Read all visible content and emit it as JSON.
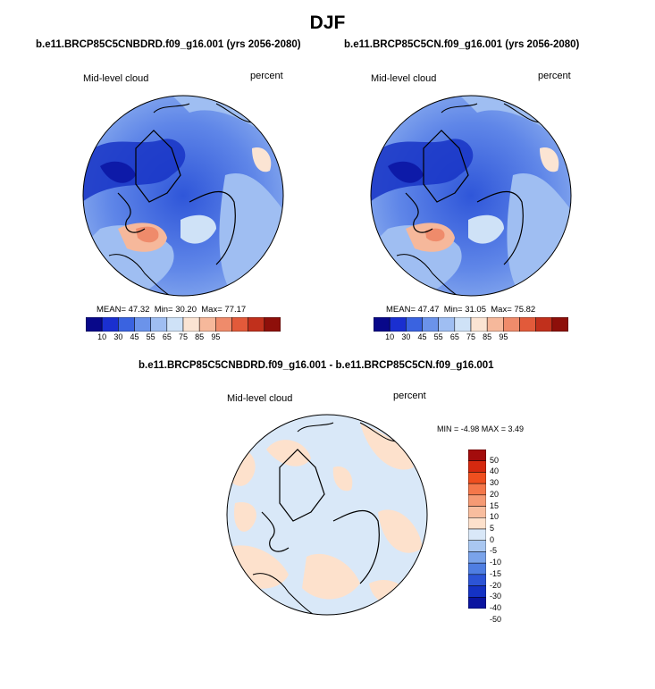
{
  "figure": {
    "season": "DJF"
  },
  "panels": [
    {
      "title": "b.e11.BRCP85C5CNBDRD.f09_g16.001 (yrs 2056-2080)",
      "field": "Mid-level cloud",
      "units": "percent",
      "mean_label": "MEAN=",
      "mean": "47.32",
      "min_label": "Min=",
      "min": "30.20",
      "max_label": "Max=",
      "max": "77.17",
      "colorbar_labels": [
        "10",
        "30",
        "45",
        "55",
        "65",
        "75",
        "85",
        "95"
      ]
    },
    {
      "title": "b.e11.BRCP85C5CN.f09_g16.001 (yrs 2056-2080)",
      "field": "Mid-level cloud",
      "units": "percent",
      "mean_label": "MEAN=",
      "mean": "47.47",
      "min_label": "Min=",
      "min": "31.05",
      "max_label": "Max=",
      "max": "75.82",
      "colorbar_labels": [
        "10",
        "30",
        "45",
        "55",
        "65",
        "75",
        "85",
        "95"
      ]
    },
    {
      "title": "b.e11.BRCP85C5CNBDRD.f09_g16.001 - b.e11.BRCP85C5CN.f09_g16.001",
      "field": "Mid-level cloud",
      "units": "percent",
      "minmax_text": "MIN =  -4.98 MAX =   3.49",
      "colorbar_labels": [
        "50",
        "40",
        "30",
        "20",
        "15",
        "10",
        "5",
        "0",
        "-5",
        "-10",
        "-15",
        "-20",
        "-30",
        "-40",
        "-50"
      ]
    }
  ],
  "colors": {
    "abs_scale": [
      "#08088a",
      "#1a2fd0",
      "#3a63e0",
      "#6b93ea",
      "#9fbef2",
      "#cfe2f7",
      "#fbe4d3",
      "#f6b89b",
      "#ef8b6b",
      "#e25a3a",
      "#c1301c",
      "#8e0f0a"
    ],
    "diff_scale": [
      "#a30c0c",
      "#d5290f",
      "#ef4f1f",
      "#f4774a",
      "#f59a74",
      "#f8bd9e",
      "#fde1cc",
      "#d9e8f8",
      "#a9c7f1",
      "#7aa3ea",
      "#4f7ee2",
      "#2c54d6",
      "#1432c4",
      "#0a14a0"
    ]
  }
}
